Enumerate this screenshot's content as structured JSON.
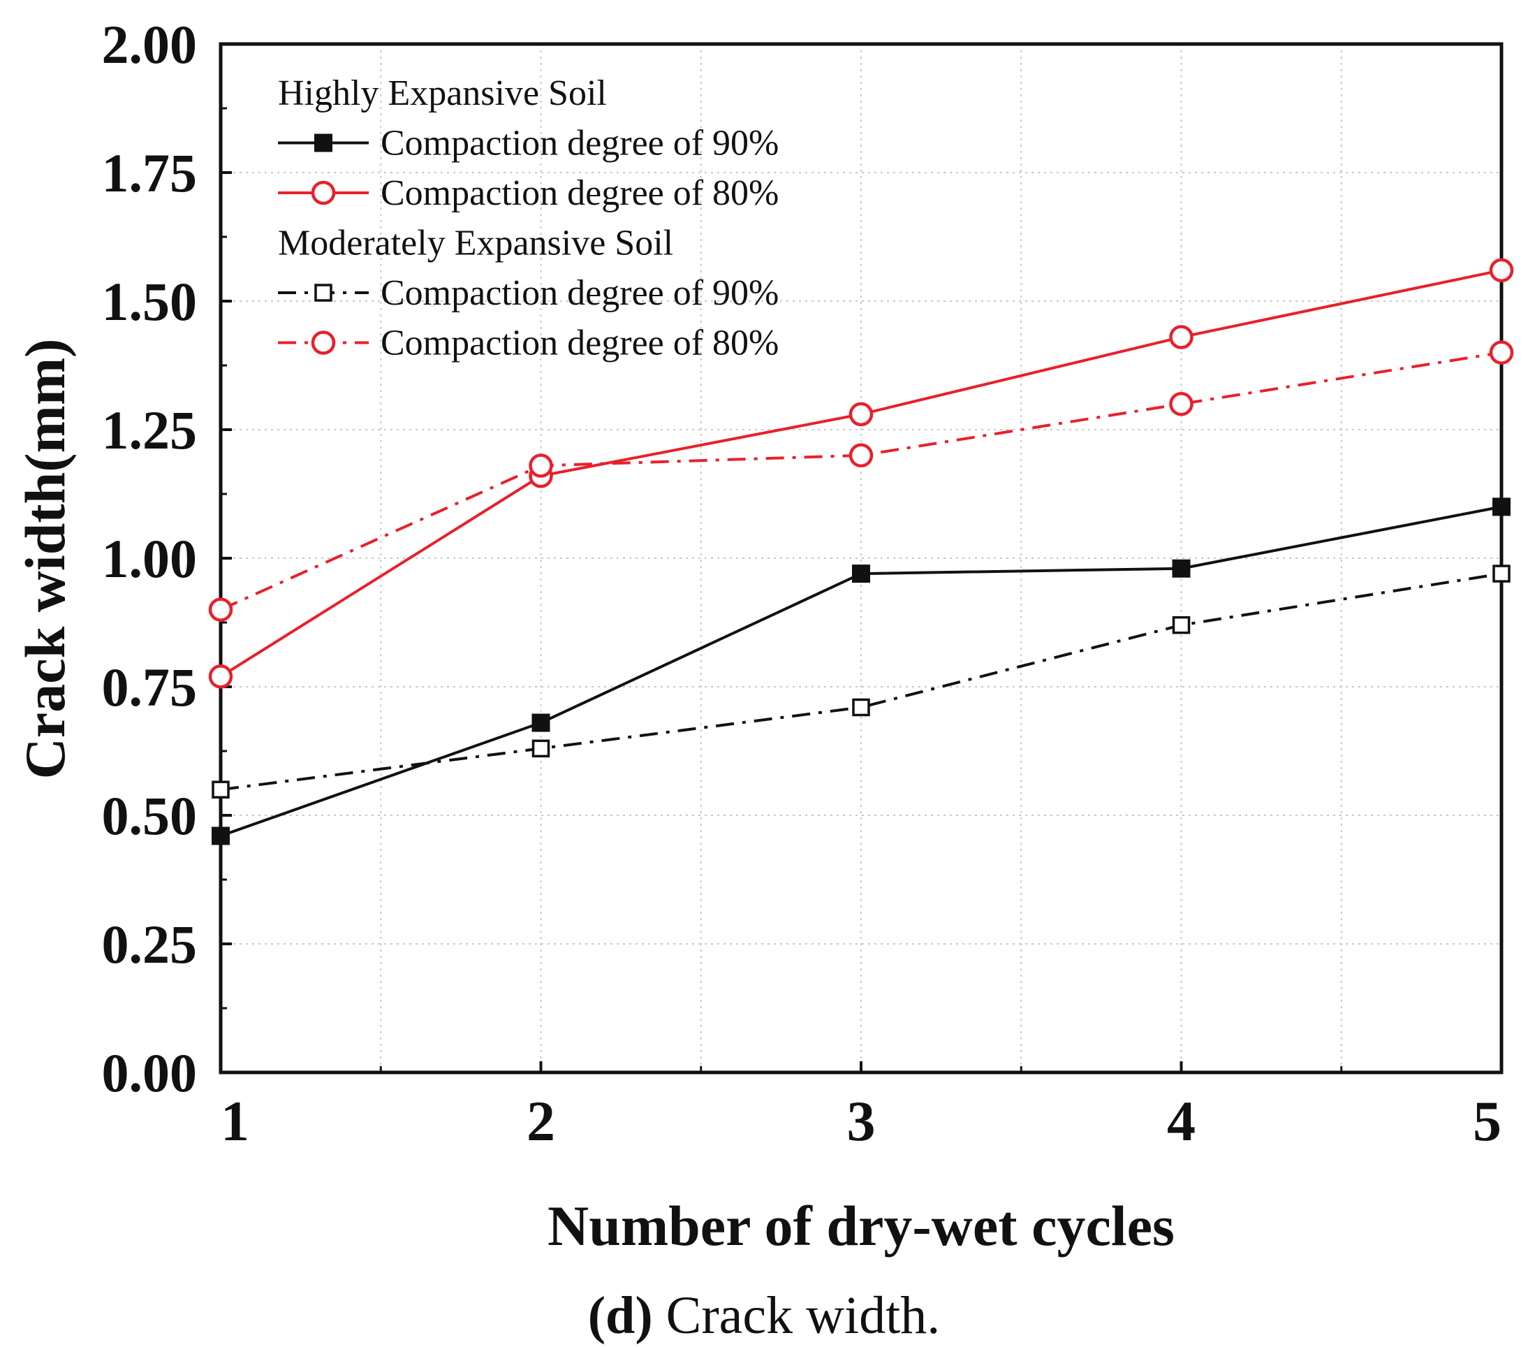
{
  "chart_data": {
    "type": "line",
    "title": "",
    "xlabel": "Number of dry-wet cycles",
    "ylabel": "Crack width(mm)",
    "x": [
      1,
      2,
      3,
      4,
      5
    ],
    "xlim": [
      1,
      5
    ],
    "ylim": [
      0,
      2
    ],
    "x_ticks": [
      "1",
      "2",
      "3",
      "4",
      "5"
    ],
    "y_ticks": [
      "0.00",
      "0.25",
      "0.50",
      "0.75",
      "1.00",
      "1.25",
      "1.50",
      "1.75",
      "2.00"
    ],
    "grid": true,
    "legend_position": "top-left",
    "legend_groups": [
      "Highly Expansive Soil",
      "Moderately Expansive Soil"
    ],
    "series": [
      {
        "name": "Compaction degree of 90%",
        "group": "Highly Expansive Soil",
        "values": [
          0.46,
          0.68,
          0.97,
          0.98,
          1.1
        ],
        "color": "#111111",
        "line": "solid",
        "marker": "square-filled"
      },
      {
        "name": "Compaction degree of 80%",
        "group": "Highly Expansive Soil",
        "values": [
          0.77,
          1.16,
          1.28,
          1.43,
          1.56
        ],
        "color": "#e8202a",
        "line": "solid",
        "marker": "circle-open"
      },
      {
        "name": "Compaction degree of 90%",
        "group": "Moderately Expansive Soil",
        "values": [
          0.55,
          0.63,
          0.71,
          0.87,
          0.97
        ],
        "color": "#111111",
        "line": "dashdot",
        "marker": "square-open"
      },
      {
        "name": "Compaction degree of 80%",
        "group": "Moderately Expansive Soil",
        "values": [
          0.9,
          1.18,
          1.2,
          1.3,
          1.4
        ],
        "color": "#e8202a",
        "line": "dashdot",
        "marker": "circle-open"
      }
    ]
  },
  "caption": {
    "label": "(d)",
    "text": " Crack width."
  }
}
